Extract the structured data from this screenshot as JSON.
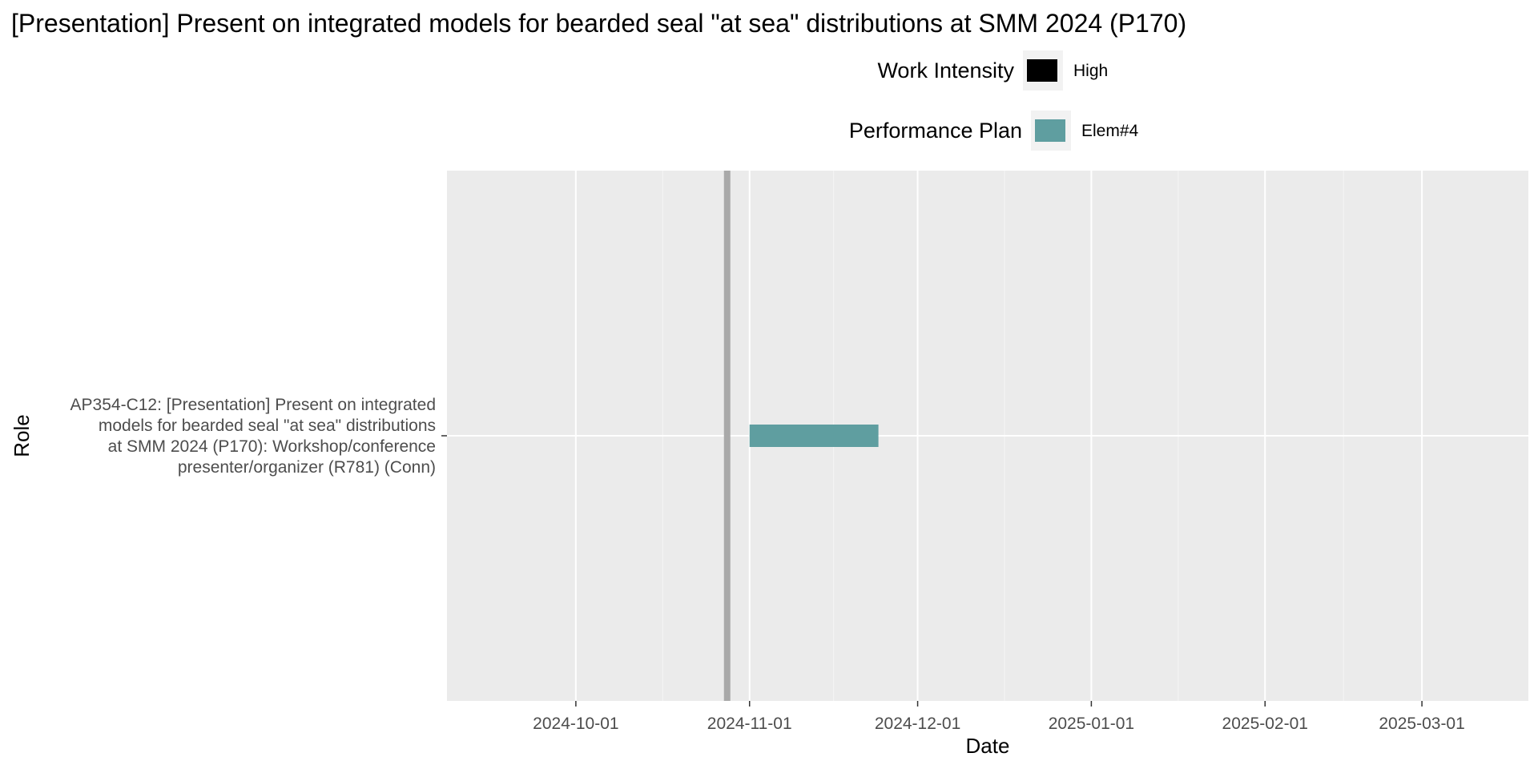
{
  "chart_data": {
    "type": "gantt",
    "title": "[Presentation] Present on integrated models for bearded seal \"at sea\" distributions at SMM 2024 (P170)",
    "xlabel": "Date",
    "ylabel": "Role",
    "xlim": [
      "2024-09-08",
      "2025-03-20"
    ],
    "x_ticks": [
      "2024-10-01",
      "2024-11-01",
      "2024-12-01",
      "2025-01-01",
      "2025-02-01",
      "2025-03-01"
    ],
    "today_line": "2024-10-28",
    "categories": [
      "AP354-C12: [Presentation] Present on integrated models for bearded seal \"at sea\" distributions at SMM 2024 (P170): Workshop/conference presenter/organizer (R781) (Conn)"
    ],
    "category_label_lines": [
      "AP354-C12: [Presentation] Present on integrated",
      "models for bearded seal \"at sea\" distributions",
      "at SMM 2024 (P170): Workshop/conference",
      "presenter/organizer (R781) (Conn)"
    ],
    "bars": [
      {
        "category": "AP354-C12: [Presentation] Present on integrated models for bearded seal \"at sea\" distributions at SMM 2024 (P170): Workshop/conference presenter/organizer (R781) (Conn)",
        "start": "2024-11-01",
        "end": "2024-11-24",
        "work_intensity": "High",
        "performance_plan": "Elem#4"
      }
    ],
    "legends": [
      {
        "title": "Work Intensity",
        "entries": [
          {
            "label": "High",
            "color": "#000000"
          }
        ]
      },
      {
        "title": "Performance Plan",
        "entries": [
          {
            "label": "Elem#4",
            "color": "#5f9ea0"
          }
        ]
      }
    ],
    "legend_position": "top",
    "grid": true,
    "colors": {
      "panel": "#ebebeb",
      "grid": "#ffffff",
      "today_line": "#a9a9a9",
      "bar": "#5f9ea0"
    }
  }
}
